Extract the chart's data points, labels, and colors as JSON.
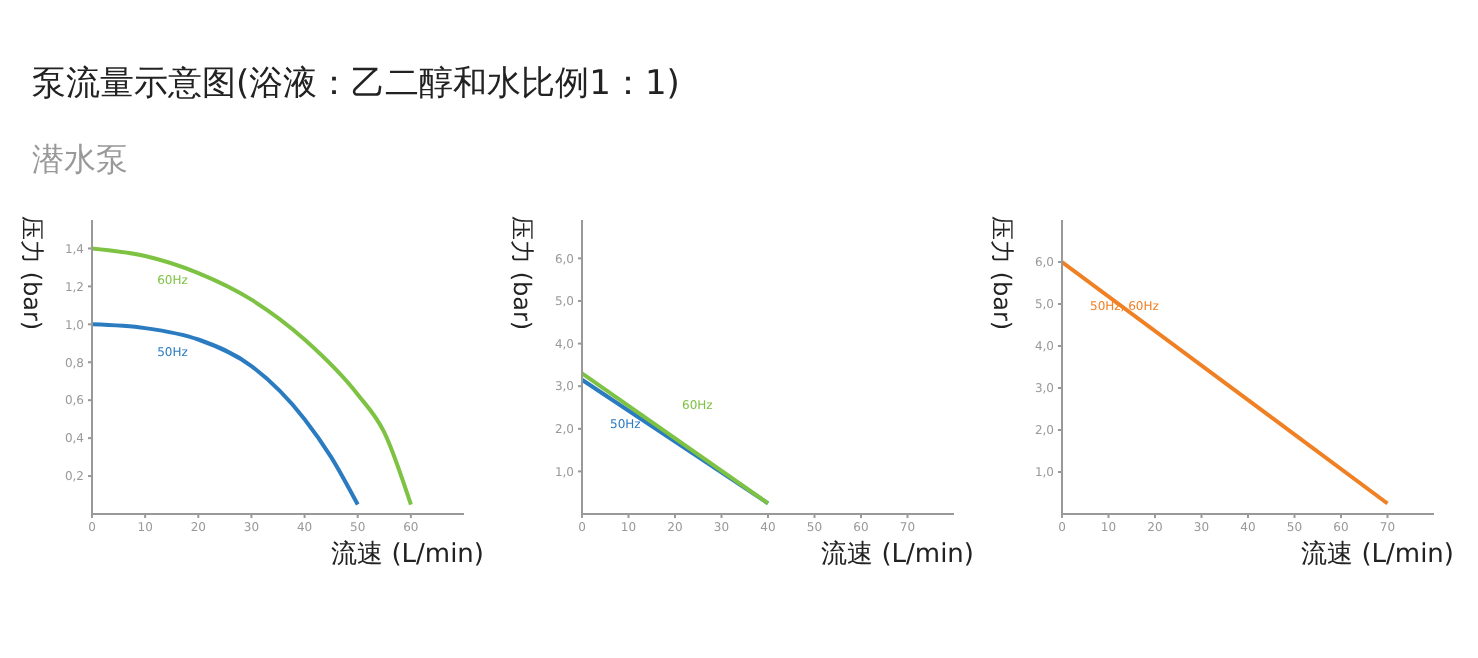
{
  "chart_data": [
    {
      "type": "line",
      "title": "泵流量示意图(浴液：乙二醇和水比例1：1)",
      "subtitle": "潜水泵",
      "xlabel": "流速 (L/min)",
      "ylabel": "压力 (bar)",
      "xlim": [
        0,
        70
      ],
      "ylim": [
        0,
        1.55
      ],
      "xticks": [
        0,
        10,
        20,
        30,
        40,
        50,
        60
      ],
      "yticks": [
        {
          "value": 0.2,
          "label": "0,2"
        },
        {
          "value": 0.4,
          "label": "0,4"
        },
        {
          "value": 0.6,
          "label": "0,6"
        },
        {
          "value": 0.8,
          "label": "0,8"
        },
        {
          "value": 1.0,
          "label": "1,0"
        },
        {
          "value": 1.2,
          "label": "1,2"
        },
        {
          "value": 1.4,
          "label": "1,4"
        }
      ],
      "series": [
        {
          "name": "60Hz",
          "color": "#7dc242",
          "x": [
            0,
            10,
            20,
            30,
            40,
            50,
            55,
            60
          ],
          "values": [
            1.4,
            1.36,
            1.27,
            1.13,
            0.92,
            0.63,
            0.43,
            0.05
          ]
        },
        {
          "name": "50Hz",
          "color": "#2a7bc0",
          "x": [
            0,
            10,
            20,
            30,
            40,
            45,
            50
          ],
          "values": [
            1.0,
            0.98,
            0.92,
            0.78,
            0.5,
            0.3,
            0.05
          ]
        }
      ]
    },
    {
      "type": "line",
      "xlabel": "流速 (L/min)",
      "ylabel": "压力 (bar)",
      "xlim": [
        0,
        80
      ],
      "ylim": [
        0,
        6.9
      ],
      "xticks": [
        0,
        10,
        20,
        30,
        40,
        50,
        60,
        70
      ],
      "yticks": [
        {
          "value": 1,
          "label": "1,0"
        },
        {
          "value": 2,
          "label": "2,0"
        },
        {
          "value": 3,
          "label": "3,0"
        },
        {
          "value": 4,
          "label": "4,0"
        },
        {
          "value": 5,
          "label": "5,0"
        },
        {
          "value": 6,
          "label": "6,0"
        }
      ],
      "series": [
        {
          "name": "50Hz",
          "color": "#2a7bc0",
          "x": [
            0,
            40
          ],
          "values": [
            3.15,
            0.25
          ]
        },
        {
          "name": "60Hz",
          "color": "#7dc242",
          "x": [
            0,
            40
          ],
          "values": [
            3.3,
            0.25
          ]
        }
      ]
    },
    {
      "type": "line",
      "xlabel": "流速 (L/min)",
      "ylabel": "压力 (bar)",
      "xlim": [
        0,
        80
      ],
      "ylim": [
        0,
        7
      ],
      "xticks": [
        0,
        10,
        20,
        30,
        40,
        50,
        60,
        70
      ],
      "yticks": [
        {
          "value": 1,
          "label": "1,0"
        },
        {
          "value": 2,
          "label": "2,0"
        },
        {
          "value": 3,
          "label": "3,0"
        },
        {
          "value": 4,
          "label": "4,0"
        },
        {
          "value": 5,
          "label": "5,0"
        },
        {
          "value": 6,
          "label": "6,0"
        }
      ],
      "series": [
        {
          "name": "50Hz, 60Hz",
          "color": "#f08024",
          "x": [
            0,
            70
          ],
          "values": [
            6.0,
            0.25
          ]
        }
      ]
    }
  ]
}
